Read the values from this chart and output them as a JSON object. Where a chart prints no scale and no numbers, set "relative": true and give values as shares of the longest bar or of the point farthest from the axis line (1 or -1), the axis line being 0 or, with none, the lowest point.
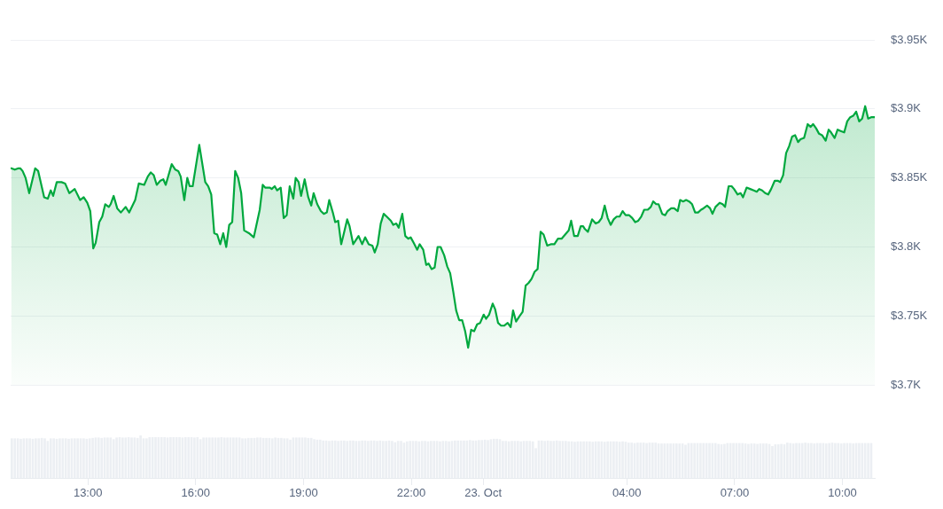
{
  "chart_data": [
    {
      "type": "area",
      "color": "#00a83e",
      "xlim": [
        "--10-22T10:51",
        "--10-23T10:54"
      ],
      "ylim": [
        3700,
        3950
      ],
      "yticks": [
        {
          "value": 3700,
          "label": "$3.7K"
        },
        {
          "value": 3750,
          "label": "$3.75K"
        },
        {
          "value": 3800,
          "label": "$3.8K"
        },
        {
          "value": 3850,
          "label": "$3.85K"
        },
        {
          "value": 3900,
          "label": "$3.9K"
        },
        {
          "value": 3950,
          "label": "$3.95K"
        }
      ],
      "grid": "y",
      "tick_labels": "y",
      "x": [
        "--10-22T10:52",
        "--10-22T10:58",
        "--10-22T11:04",
        "--10-22T11:07",
        "--10-22T11:11",
        "--10-22T11:16",
        "--10-22T11:22",
        "--10-22T11:32",
        "--10-22T11:37",
        "--10-22T11:47",
        "--10-22T11:53",
        "--10-22T11:58",
        "--10-22T12:02",
        "--10-22T12:08",
        "--10-22T12:16",
        "--10-22T12:22",
        "--10-22T12:29",
        "--10-22T12:38",
        "--10-22T12:47",
        "--10-22T12:53",
        "--10-22T12:59",
        "--10-22T13:04",
        "--10-22T13:09",
        "--10-22T13:13",
        "--10-22T13:19",
        "--10-22T13:24",
        "--10-22T13:29",
        "--10-22T13:35",
        "--10-22T13:38",
        "--10-22T13:43",
        "--10-22T13:49",
        "--10-22T13:55",
        "--10-22T14:03",
        "--10-22T14:09",
        "--10-22T14:19",
        "--10-22T14:25",
        "--10-22T14:34",
        "--10-22T14:40",
        "--10-22T14:45",
        "--10-22T14:50",
        "--10-22T14:55",
        "--10-22T15:01",
        "--10-22T15:06",
        "--10-22T15:10",
        "--10-22T15:20",
        "--10-22T15:26",
        "--10-22T15:31",
        "--10-22T15:35",
        "--10-22T15:41",
        "--10-22T15:46",
        "--10-22T15:50",
        "--10-22T15:55",
        "--10-22T16:06",
        "--10-22T16:16",
        "--10-22T16:21",
        "--10-22T16:26",
        "--10-22T16:31",
        "--10-22T16:36",
        "--10-22T16:41",
        "--10-22T16:46",
        "--10-22T16:51",
        "--10-22T16:56",
        "--10-22T17:01",
        "--10-22T17:06",
        "--10-22T17:11",
        "--10-22T17:16",
        "--10-22T17:21",
        "--10-22T17:29",
        "--10-22T17:37",
        "--10-22T17:41",
        "--10-22T17:47",
        "--10-22T17:52",
        "--10-22T17:56",
        "--10-22T18:04",
        "--10-22T18:07",
        "--10-22T18:12",
        "--10-22T18:16",
        "--10-22T18:22",
        "--10-22T18:27",
        "--10-22T18:32",
        "--10-22T18:37",
        "--10-22T18:43",
        "--10-22T18:47",
        "--10-22T18:52",
        "--10-22T18:56",
        "--10-22T19:02",
        "--10-22T19:08",
        "--10-22T19:13",
        "--10-22T19:17",
        "--10-22T19:23",
        "--10-22T19:29",
        "--10-22T19:34",
        "--10-22T19:39",
        "--10-22T19:43",
        "--10-22T19:49",
        "--10-22T19:53",
        "--10-22T19:58",
        "--10-22T20:03",
        "--10-22T20:07",
        "--10-22T20:13",
        "--10-22T20:17",
        "--10-22T20:23",
        "--10-22T20:32",
        "--10-22T20:38",
        "--10-22T20:43",
        "--10-22T20:49",
        "--10-22T20:55",
        "--10-22T20:59",
        "--10-22T21:04",
        "--10-22T21:09",
        "--10-22T21:14",
        "--10-22T21:19",
        "--10-22T21:26",
        "--10-22T21:30",
        "--10-22T21:35",
        "--10-22T21:39",
        "--10-22T21:45",
        "--10-22T21:50",
        "--10-22T21:55",
        "--10-22T21:59",
        "--10-22T22:04",
        "--10-22T22:10",
        "--10-22T22:14",
        "--10-22T22:20",
        "--10-22T22:25",
        "--10-22T22:29",
        "--10-22T22:34",
        "--10-22T22:39",
        "--10-22T22:44",
        "--10-22T22:49",
        "--10-22T22:55",
        "--10-22T23:00",
        "--10-22T23:05",
        "--10-22T23:10",
        "--10-22T23:15",
        "--10-22T23:20",
        "--10-22T23:25",
        "--10-22T23:30",
        "--10-22T23:35",
        "--10-22T23:40",
        "--10-22T23:45",
        "--10-22T23:50",
        "--10-22T23:55",
        "--10-23T00:01",
        "--10-23T00:05",
        "--10-23T00:10",
        "--10-23T00:16",
        "--10-23T00:20",
        "--10-23T00:25",
        "--10-23T00:30",
        "--10-23T00:35",
        "--10-23T00:41",
        "--10-23T00:46",
        "--10-23T00:50",
        "--10-23T00:55",
        "--10-23T01:01",
        "--10-23T01:06",
        "--10-23T01:11",
        "--10-23T01:16",
        "--10-23T01:21",
        "--10-23T01:26",
        "--10-23T01:31",
        "--10-23T01:36",
        "--10-23T01:41",
        "--10-23T01:47",
        "--10-23T01:53",
        "--10-23T01:59",
        "--10-23T02:05",
        "--10-23T02:11",
        "--10-23T02:17",
        "--10-23T02:23",
        "--10-23T02:27",
        "--10-23T02:32",
        "--10-23T02:38",
        "--10-23T02:43",
        "--10-23T02:47",
        "--10-23T02:50",
        "--10-23T02:55",
        "--10-23T03:02",
        "--10-23T03:08",
        "--10-23T03:13",
        "--10-23T03:18",
        "--10-23T03:23",
        "--10-23T03:28",
        "--10-23T03:33",
        "--10-23T03:38",
        "--10-23T03:43",
        "--10-23T03:48",
        "--10-23T03:53",
        "--10-23T03:58",
        "--10-23T04:04",
        "--10-23T04:09",
        "--10-23T04:14",
        "--10-23T04:19",
        "--10-23T04:24",
        "--10-23T04:29",
        "--10-23T04:35",
        "--10-23T04:40",
        "--10-23T04:44",
        "--10-23T04:49",
        "--10-23T04:53",
        "--10-23T04:59",
        "--10-23T05:04",
        "--10-23T05:08",
        "--10-23T05:14",
        "--10-23T05:19",
        "--10-23T05:25",
        "--10-23T05:29",
        "--10-23T05:34",
        "--10-23T05:39",
        "--10-23T05:44",
        "--10-23T05:49",
        "--10-23T05:54",
        "--10-23T05:59",
        "--10-23T06:04",
        "--10-23T06:08",
        "--10-23T06:14",
        "--10-23T06:19",
        "--10-23T06:23",
        "--10-23T06:28",
        "--10-23T06:35",
        "--10-23T06:40",
        "--10-23T06:44",
        "--10-23T06:50",
        "--10-23T06:55",
        "--10-23T06:59",
        "--10-23T07:05",
        "--10-23T07:10",
        "--10-23T07:14",
        "--10-23T07:20",
        "--10-23T07:26",
        "--10-23T07:32",
        "--10-23T07:37",
        "--10-23T07:41",
        "--10-23T07:46",
        "--10-23T07:51",
        "--10-23T07:56",
        "--10-23T08:01",
        "--10-23T08:07",
        "--10-23T08:12",
        "--10-23T08:16",
        "--10-23T08:21",
        "--10-23T08:26",
        "--10-23T08:31",
        "--10-23T08:36",
        "--10-23T08:41",
        "--10-23T08:46",
        "--10-23T08:50",
        "--10-23T08:56",
        "--10-23T09:02",
        "--10-23T09:07",
        "--10-23T09:11",
        "--10-23T09:16",
        "--10-23T09:21",
        "--10-23T09:26",
        "--10-23T09:32",
        "--10-23T09:37",
        "--10-23T09:41",
        "--10-23T09:47",
        "--10-23T09:52",
        "--10-23T09:57",
        "--10-23T10:03",
        "--10-23T10:08",
        "--10-23T10:13",
        "--10-23T10:18",
        "--10-23T10:23",
        "--10-23T10:28",
        "--10-23T10:33",
        "--10-23T10:38",
        "--10-23T10:43",
        "--10-23T10:48",
        "--10-23T10:54"
      ],
      "values": [
        3857,
        3856,
        3857,
        3857,
        3855,
        3850,
        3839,
        3857,
        3855,
        3836,
        3835,
        3841,
        3837,
        3847,
        3847,
        3846,
        3839,
        3842,
        3834,
        3836,
        3832,
        3826,
        3799,
        3803,
        3818,
        3822,
        3831,
        3829,
        3831,
        3837,
        3828,
        3825,
        3829,
        3825,
        3834,
        3846,
        3845,
        3851,
        3854,
        3852,
        3845,
        3848,
        3849,
        3845,
        3860,
        3856,
        3855,
        3851,
        3834,
        3850,
        3844,
        3844,
        3874,
        3847,
        3844,
        3838,
        3810,
        3809,
        3802,
        3810,
        3800,
        3816,
        3818,
        3855,
        3850,
        3839,
        3812,
        3810,
        3807,
        3815,
        3827,
        3845,
        3843,
        3843,
        3842,
        3844,
        3841,
        3843,
        3821,
        3823,
        3844,
        3835,
        3850,
        3847,
        3837,
        3849,
        3836,
        3830,
        3839,
        3831,
        3826,
        3824,
        3825,
        3834,
        3825,
        3818,
        3819,
        3802,
        3809,
        3820,
        3815,
        3802,
        3808,
        3802,
        3807,
        3802,
        3801,
        3796,
        3802,
        3817,
        3824,
        3822,
        3819,
        3816,
        3817,
        3814,
        3824,
        3808,
        3806,
        3807,
        3803,
        3798,
        3802,
        3798,
        3787,
        3788,
        3784,
        3785,
        3800,
        3800,
        3794,
        3786,
        3781,
        3768,
        3754,
        3747,
        3747,
        3739,
        3727,
        3740,
        3739,
        3744,
        3745,
        3751,
        3748,
        3751,
        3759,
        3755,
        3745,
        3743,
        3743,
        3745,
        3742,
        3754,
        3746,
        3750,
        3753,
        3772,
        3774,
        3777,
        3782,
        3784,
        3811,
        3809,
        3801,
        3802,
        3802,
        3806,
        3806,
        3809,
        3812,
        3819,
        3808,
        3808,
        3815,
        3815,
        3813,
        3811,
        3820,
        3817,
        3818,
        3821,
        3830,
        3821,
        3816,
        3820,
        3822,
        3822,
        3826,
        3823,
        3823,
        3821,
        3818,
        3819,
        3822,
        3827,
        3827,
        3829,
        3833,
        3831,
        3831,
        3824,
        3823,
        3826,
        3828,
        3828,
        3826,
        3834,
        3833,
        3834,
        3833,
        3831,
        3825,
        3825,
        3827,
        3828,
        3830,
        3828,
        3824,
        3829,
        3832,
        3831,
        3829,
        3844,
        3844,
        3842,
        3838,
        3839,
        3836,
        3843,
        3842,
        3841,
        3840,
        3842,
        3841,
        3839,
        3838,
        3842,
        3848,
        3848,
        3847,
        3852,
        3868,
        3873,
        3880,
        3881,
        3876,
        3878,
        3879,
        3889,
        3887,
        3889,
        3886,
        3882,
        3881,
        3877,
        3885,
        3883,
        3879,
        3885,
        3884,
        3883,
        3891,
        3894,
        3895,
        3898,
        3891,
        3893,
        3902,
        3893,
        3894,
        3894
      ]
    },
    {
      "type": "bar",
      "relative": true,
      "color": "#eceff3",
      "xlim": [
        "--10-22T10:51",
        "--10-23T10:54"
      ],
      "xticks": [
        {
          "value": "--10-22T13:00",
          "label": "13:00"
        },
        {
          "value": "--10-22T16:00",
          "label": "16:00"
        },
        {
          "value": "--10-22T19:00",
          "label": "19:00"
        },
        {
          "value": "--10-22T22:00",
          "label": "22:00"
        },
        {
          "value": "--10-23",
          "label": "23. Oct"
        },
        {
          "value": "--10-23T04:00",
          "label": "04:00"
        },
        {
          "value": "--10-23T07:00",
          "label": "07:00"
        },
        {
          "value": "--10-23T10:00",
          "label": "10:00"
        }
      ],
      "x": [
        "--10-22T10:53",
        "--10-22T10:58",
        "--10-22T11:03",
        "--10-22T11:08",
        "--10-22T11:13",
        "--10-22T11:18",
        "--10-22T11:23",
        "--10-22T11:28",
        "--10-22T11:33",
        "--10-22T11:38",
        "--10-22T11:43",
        "--10-22T11:48",
        "--10-22T11:53",
        "--10-22T11:58",
        "--10-22T12:03",
        "--10-22T12:08",
        "--10-22T12:13",
        "--10-22T12:18",
        "--10-22T12:23",
        "--10-22T12:28",
        "--10-22T12:33",
        "--10-22T12:38",
        "--10-22T12:43",
        "--10-22T12:48",
        "--10-22T12:53",
        "--10-22T12:58",
        "--10-22T13:03",
        "--10-22T13:08",
        "--10-22T13:13",
        "--10-22T13:18",
        "--10-22T13:23",
        "--10-22T13:28",
        "--10-22T13:33",
        "--10-22T13:38",
        "--10-22T13:43",
        "--10-22T13:48",
        "--10-22T13:53",
        "--10-22T13:58",
        "--10-22T14:03",
        "--10-22T14:08",
        "--10-22T14:13",
        "--10-22T14:18",
        "--10-22T14:23",
        "--10-22T14:28",
        "--10-22T14:33",
        "--10-22T14:38",
        "--10-22T14:43",
        "--10-22T14:48",
        "--10-22T14:53",
        "--10-22T14:58",
        "--10-22T15:03",
        "--10-22T15:08",
        "--10-22T15:13",
        "--10-22T15:18",
        "--10-22T15:23",
        "--10-22T15:28",
        "--10-22T15:33",
        "--10-22T15:38",
        "--10-22T15:43",
        "--10-22T15:48",
        "--10-22T15:53",
        "--10-22T15:58",
        "--10-22T16:03",
        "--10-22T16:08",
        "--10-22T16:13",
        "--10-22T16:18",
        "--10-22T16:23",
        "--10-22T16:28",
        "--10-22T16:33",
        "--10-22T16:38",
        "--10-22T16:43",
        "--10-22T16:48",
        "--10-22T16:53",
        "--10-22T16:58",
        "--10-22T17:03",
        "--10-22T17:08",
        "--10-22T17:13",
        "--10-22T17:18",
        "--10-22T17:23",
        "--10-22T17:28",
        "--10-22T17:33",
        "--10-22T17:38",
        "--10-22T17:43",
        "--10-22T17:48",
        "--10-22T17:53",
        "--10-22T17:58",
        "--10-22T18:03",
        "--10-22T18:08",
        "--10-22T18:13",
        "--10-22T18:18",
        "--10-22T18:23",
        "--10-22T18:28",
        "--10-22T18:33",
        "--10-22T18:38",
        "--10-22T18:43",
        "--10-22T18:48",
        "--10-22T18:53",
        "--10-22T18:58",
        "--10-22T19:03",
        "--10-22T19:08",
        "--10-22T19:13",
        "--10-22T19:18",
        "--10-22T19:23",
        "--10-22T19:28",
        "--10-22T19:33",
        "--10-22T19:38",
        "--10-22T19:43",
        "--10-22T19:48",
        "--10-22T19:53",
        "--10-22T19:58",
        "--10-22T20:03",
        "--10-22T20:08",
        "--10-22T20:13",
        "--10-22T20:18",
        "--10-22T20:23",
        "--10-22T20:28",
        "--10-22T20:33",
        "--10-22T20:38",
        "--10-22T20:43",
        "--10-22T20:48",
        "--10-22T20:53",
        "--10-22T20:58",
        "--10-22T21:03",
        "--10-22T21:08",
        "--10-22T21:13",
        "--10-22T21:18",
        "--10-22T21:23",
        "--10-22T21:28",
        "--10-22T21:33",
        "--10-22T21:38",
        "--10-22T21:43",
        "--10-22T21:48",
        "--10-22T21:53",
        "--10-22T21:58",
        "--10-22T22:03",
        "--10-22T22:08",
        "--10-22T22:13",
        "--10-22T22:18",
        "--10-22T22:23",
        "--10-22T22:28",
        "--10-22T22:33",
        "--10-22T22:38",
        "--10-22T22:43",
        "--10-22T22:48",
        "--10-22T22:53",
        "--10-22T22:58",
        "--10-22T23:03",
        "--10-22T23:08",
        "--10-22T23:13",
        "--10-22T23:18",
        "--10-22T23:23",
        "--10-22T23:28",
        "--10-22T23:33",
        "--10-22T23:38",
        "--10-22T23:43",
        "--10-22T23:48",
        "--10-22T23:53",
        "--10-22T23:58",
        "--10-23T00:03",
        "--10-23T00:08",
        "--10-23T00:13",
        "--10-23T00:18",
        "--10-23T00:23",
        "--10-23T00:28",
        "--10-23T00:33",
        "--10-23T00:38",
        "--10-23T00:43",
        "--10-23T00:48",
        "--10-23T00:53",
        "--10-23T00:58",
        "--10-23T01:03",
        "--10-23T01:08",
        "--10-23T01:13",
        "--10-23T01:18",
        "--10-23T01:23",
        "--10-23T01:28",
        "--10-23T01:33",
        "--10-23T01:38",
        "--10-23T01:43",
        "--10-23T01:48",
        "--10-23T01:53",
        "--10-23T01:58",
        "--10-23T02:03",
        "--10-23T02:08",
        "--10-23T02:13",
        "--10-23T02:18",
        "--10-23T02:23",
        "--10-23T02:28",
        "--10-23T02:33",
        "--10-23T02:38",
        "--10-23T02:43",
        "--10-23T02:48",
        "--10-23T02:53",
        "--10-23T02:58",
        "--10-23T03:03",
        "--10-23T03:08",
        "--10-23T03:13",
        "--10-23T03:18",
        "--10-23T03:23",
        "--10-23T03:28",
        "--10-23T03:33",
        "--10-23T03:38",
        "--10-23T03:43",
        "--10-23T03:48",
        "--10-23T03:53",
        "--10-23T03:58",
        "--10-23T04:03",
        "--10-23T04:08",
        "--10-23T04:13",
        "--10-23T04:18",
        "--10-23T04:23",
        "--10-23T04:28",
        "--10-23T04:33",
        "--10-23T04:38",
        "--10-23T04:43",
        "--10-23T04:48",
        "--10-23T04:53",
        "--10-23T04:58",
        "--10-23T05:03",
        "--10-23T05:08",
        "--10-23T05:13",
        "--10-23T05:18",
        "--10-23T05:23",
        "--10-23T05:28",
        "--10-23T05:33",
        "--10-23T05:38",
        "--10-23T05:43",
        "--10-23T05:48",
        "--10-23T05:53",
        "--10-23T05:58",
        "--10-23T06:03",
        "--10-23T06:08",
        "--10-23T06:13",
        "--10-23T06:18",
        "--10-23T06:23",
        "--10-23T06:28",
        "--10-23T06:33",
        "--10-23T06:38",
        "--10-23T06:43",
        "--10-23T06:48",
        "--10-23T06:53",
        "--10-23T06:58",
        "--10-23T07:03",
        "--10-23T07:08",
        "--10-23T07:13",
        "--10-23T07:18",
        "--10-23T07:23",
        "--10-23T07:28",
        "--10-23T07:33",
        "--10-23T07:38",
        "--10-23T07:43",
        "--10-23T07:48",
        "--10-23T07:53",
        "--10-23T07:58",
        "--10-23T08:03",
        "--10-23T08:08",
        "--10-23T08:13",
        "--10-23T08:18",
        "--10-23T08:23",
        "--10-23T08:28",
        "--10-23T08:33",
        "--10-23T08:38",
        "--10-23T08:43",
        "--10-23T08:48",
        "--10-23T08:53",
        "--10-23T08:58",
        "--10-23T09:03",
        "--10-23T09:08",
        "--10-23T09:13",
        "--10-23T09:18",
        "--10-23T09:23",
        "--10-23T09:28",
        "--10-23T09:33",
        "--10-23T09:38",
        "--10-23T09:43",
        "--10-23T09:48",
        "--10-23T09:53",
        "--10-23T09:58",
        "--10-23T10:03",
        "--10-23T10:08",
        "--10-23T10:13",
        "--10-23T10:18",
        "--10-23T10:23",
        "--10-23T10:28",
        "--10-23T10:33",
        "--10-23T10:38",
        "--10-23T10:43",
        "--10-23T10:48"
      ],
      "values": [
        0.93,
        0.93,
        0.93,
        0.92,
        0.93,
        0.93,
        0.93,
        0.92,
        0.93,
        0.93,
        0.94,
        0.93,
        0.87,
        0.93,
        0.93,
        0.92,
        0.93,
        0.93,
        0.93,
        0.92,
        0.93,
        0.93,
        0.93,
        0.93,
        0.93,
        0.92,
        0.93,
        0.94,
        0.95,
        0.95,
        0.94,
        0.95,
        0.95,
        0.95,
        0.91,
        0.95,
        0.96,
        0.95,
        0.95,
        0.96,
        0.95,
        0.95,
        0.94,
        1,
        0.93,
        0.93,
        0.96,
        0.96,
        0.96,
        0.96,
        0.96,
        0.96,
        0.95,
        0.96,
        0.96,
        0.96,
        0.96,
        0.95,
        0.96,
        0.96,
        0.96,
        0.95,
        0.96,
        0.91,
        0.95,
        0.95,
        0.95,
        0.95,
        0.95,
        0.95,
        0.96,
        0.95,
        0.95,
        0.95,
        0.95,
        0.95,
        0.95,
        0.93,
        0.93,
        0.94,
        0.94,
        0.94,
        0.95,
        0.95,
        0.94,
        0.94,
        0.94,
        0.93,
        0.95,
        0.94,
        0.94,
        0.93,
        0.93,
        0.9,
        0.95,
        0.95,
        0.95,
        0.95,
        0.95,
        0.94,
        0.94,
        0.91,
        0.9,
        0.9,
        0.88,
        0.88,
        0.87,
        0.88,
        0.88,
        0.87,
        0.88,
        0.88,
        0.87,
        0.88,
        0.88,
        0.87,
        0.87,
        0.88,
        0.88,
        0.87,
        0.88,
        0.88,
        0.87,
        0.88,
        0.87,
        0.87,
        0.88,
        0.87,
        0.84,
        0.87,
        0.87,
        0.83,
        0.86,
        0.87,
        0.87,
        0.87,
        0.86,
        0.87,
        0.87,
        0.86,
        0.87,
        0.87,
        0.87,
        0.86,
        0.87,
        0.87,
        0.86,
        0.87,
        0.88,
        0.88,
        0.88,
        0.88,
        0.88,
        0.89,
        0.88,
        0.88,
        0.89,
        0.89,
        0.9,
        0.89,
        0.91,
        0.92,
        0.92,
        0.91,
        0.87,
        0.87,
        0.86,
        0.87,
        0.87,
        0.87,
        0.86,
        0.87,
        0.87,
        0.87,
        0.86,
        0.7,
        0.88,
        0.88,
        0.87,
        0.88,
        0.87,
        0.87,
        0.88,
        0.87,
        0.87,
        0.87,
        0.86,
        0.86,
        0.85,
        0.86,
        0.86,
        0.86,
        0.86,
        0.86,
        0.85,
        0.86,
        0.86,
        0.86,
        0.85,
        0.86,
        0.86,
        0.86,
        0.86,
        0.85,
        0.86,
        0.85,
        0.83,
        0.83,
        0.82,
        0.83,
        0.83,
        0.83,
        0.82,
        0.83,
        0.83,
        0.83,
        0.81,
        0.81,
        0.81,
        0.81,
        0.81,
        0.81,
        0.81,
        0.81,
        0.81,
        0.78,
        0.82,
        0.82,
        0.82,
        0.82,
        0.82,
        0.82,
        0.82,
        0.82,
        0.82,
        0.82,
        0.8,
        0.79,
        0.8,
        0.82,
        0.82,
        0.82,
        0.82,
        0.82,
        0.82,
        0.81,
        0.8,
        0.81,
        0.81,
        0.8,
        0.81,
        0.81,
        0.81,
        0.8,
        0.75,
        0.79,
        0.79,
        0.8,
        0.79,
        0.83,
        0.82,
        0.81,
        0.82,
        0.82,
        0.82,
        0.83,
        0.82,
        0.82,
        0.81,
        0.82,
        0.82,
        0.82,
        0.81,
        0.82,
        0.83,
        0.82,
        0.82,
        0.81,
        0.82,
        0.82,
        0.82,
        0.81,
        0.82,
        0.82,
        0.82,
        0.82,
        0.82,
        0.82
      ]
    }
  ]
}
